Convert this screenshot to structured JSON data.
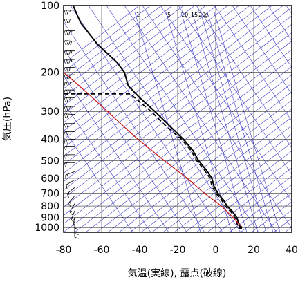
{
  "chart_data": {
    "type": "line",
    "subtype": "skew-t-log-p",
    "xlabel": "気温(実線), 露点(破線)",
    "ylabel": "気圧(hPa)",
    "x_ticks": [
      -80,
      -60,
      -40,
      -20,
      0,
      20,
      40
    ],
    "y_ticks": [
      100,
      200,
      300,
      400,
      500,
      600,
      700,
      800,
      900,
      1000
    ],
    "xlim": [
      -80,
      40
    ],
    "ylim": [
      1050,
      100
    ],
    "y_scale": "log",
    "grid": true,
    "mixing_ratio_labels": [
      "1",
      "5",
      "10",
      "15",
      "20",
      "g"
    ],
    "series": [
      {
        "style": "solid-black",
        "points": [
          {
            "p": 100,
            "t": -75
          },
          {
            "p": 120,
            "t": -71
          },
          {
            "p": 150,
            "t": -62
          },
          {
            "p": 180,
            "t": -52
          },
          {
            "p": 200,
            "t": -48
          },
          {
            "p": 230,
            "t": -46
          },
          {
            "p": 260,
            "t": -40
          },
          {
            "p": 300,
            "t": -32
          },
          {
            "p": 350,
            "t": -24
          },
          {
            "p": 400,
            "t": -17
          },
          {
            "p": 450,
            "t": -12
          },
          {
            "p": 500,
            "t": -9
          },
          {
            "p": 550,
            "t": -5
          },
          {
            "p": 600,
            "t": -2
          },
          {
            "p": 650,
            "t": -1
          },
          {
            "p": 700,
            "t": 1
          },
          {
            "p": 750,
            "t": 4
          },
          {
            "p": 800,
            "t": 6
          },
          {
            "p": 850,
            "t": 9
          },
          {
            "p": 900,
            "t": 11
          },
          {
            "p": 950,
            "t": 12
          },
          {
            "p": 1000,
            "t": 13
          }
        ]
      },
      {
        "style": "dashed-black",
        "points": [
          {
            "p": 250,
            "t": -80
          },
          {
            "p": 250,
            "t": -45
          },
          {
            "p": 300,
            "t": -34
          },
          {
            "p": 350,
            "t": -26
          },
          {
            "p": 400,
            "t": -18
          },
          {
            "p": 450,
            "t": -13
          },
          {
            "p": 500,
            "t": -10
          },
          {
            "p": 550,
            "t": -6
          },
          {
            "p": 600,
            "t": -3
          },
          {
            "p": 650,
            "t": -2
          },
          {
            "p": 700,
            "t": 0
          },
          {
            "p": 750,
            "t": 3
          },
          {
            "p": 800,
            "t": 5
          },
          {
            "p": 850,
            "t": 8
          },
          {
            "p": 900,
            "t": 10
          },
          {
            "p": 950,
            "t": 11
          },
          {
            "p": 1000,
            "t": 12
          }
        ]
      },
      {
        "style": "solid-red",
        "points": [
          {
            "p": 1000,
            "t": 14
          },
          {
            "p": 900,
            "t": 9
          },
          {
            "p": 800,
            "t": 3
          },
          {
            "p": 700,
            "t": -6
          },
          {
            "p": 600,
            "t": -15
          },
          {
            "p": 500,
            "t": -27
          },
          {
            "p": 400,
            "t": -41
          },
          {
            "p": 300,
            "t": -57
          },
          {
            "p": 250,
            "t": -67
          },
          {
            "p": 200,
            "t": -80
          }
        ]
      }
    ],
    "wind_barbs": [
      {
        "p": 105,
        "dir": 270,
        "kt": 35
      },
      {
        "p": 115,
        "dir": 270,
        "kt": 40
      },
      {
        "p": 130,
        "dir": 270,
        "kt": 45
      },
      {
        "p": 145,
        "dir": 275,
        "kt": 50
      },
      {
        "p": 160,
        "dir": 270,
        "kt": 50
      },
      {
        "p": 175,
        "dir": 270,
        "kt": 45
      },
      {
        "p": 190,
        "dir": 270,
        "kt": 40
      },
      {
        "p": 205,
        "dir": 270,
        "kt": 40
      },
      {
        "p": 220,
        "dir": 265,
        "kt": 35
      },
      {
        "p": 240,
        "dir": 270,
        "kt": 40
      },
      {
        "p": 260,
        "dir": 270,
        "kt": 35
      },
      {
        "p": 285,
        "dir": 270,
        "kt": 35
      },
      {
        "p": 310,
        "dir": 275,
        "kt": 30
      },
      {
        "p": 340,
        "dir": 270,
        "kt": 30
      },
      {
        "p": 370,
        "dir": 270,
        "kt": 30
      },
      {
        "p": 400,
        "dir": 265,
        "kt": 30
      },
      {
        "p": 430,
        "dir": 270,
        "kt": 25
      },
      {
        "p": 470,
        "dir": 270,
        "kt": 25
      },
      {
        "p": 510,
        "dir": 270,
        "kt": 20
      },
      {
        "p": 560,
        "dir": 250,
        "kt": 15
      },
      {
        "p": 610,
        "dir": 240,
        "kt": 15
      },
      {
        "p": 660,
        "dir": 230,
        "kt": 15
      },
      {
        "p": 720,
        "dir": 220,
        "kt": 15
      },
      {
        "p": 780,
        "dir": 210,
        "kt": 15
      },
      {
        "p": 840,
        "dir": 200,
        "kt": 15
      },
      {
        "p": 900,
        "dir": 190,
        "kt": 10
      },
      {
        "p": 960,
        "dir": 180,
        "kt": 10
      },
      {
        "p": 1000,
        "dir": 180,
        "kt": 10
      }
    ],
    "colors": {
      "grid_lines": "#3c3cc8",
      "frame": "#000000",
      "temperature": "#000000",
      "dewpoint": "#000000",
      "parcel": "#d01010"
    }
  }
}
